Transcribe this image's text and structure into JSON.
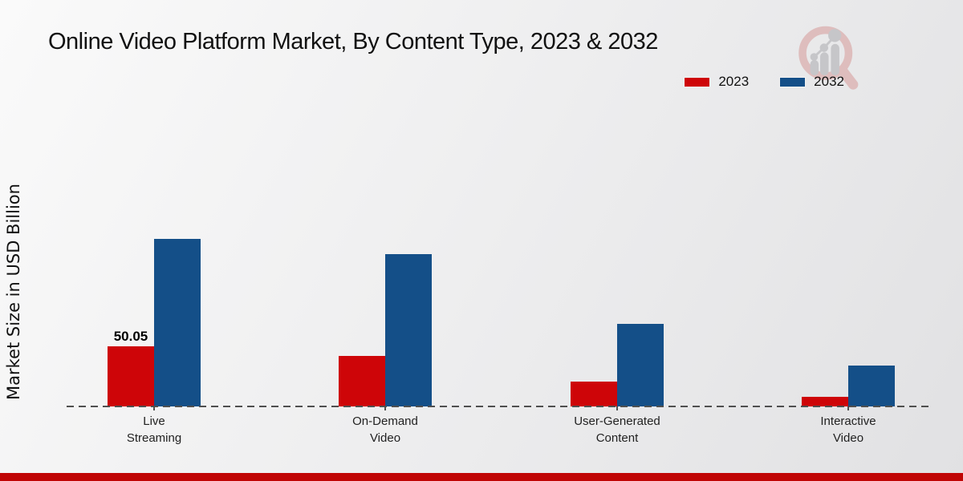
{
  "header": {
    "title": "Online Video Platform Market, By Content Type, 2023 & 2032"
  },
  "watermark": {
    "icon": "magnifier-bar-chart-logo",
    "ring_color": "#debdbd",
    "bars_color": "#c6c6c9"
  },
  "legend": {
    "items": [
      {
        "label": "2023",
        "color": "#ce0508"
      },
      {
        "label": "2032",
        "color": "#144f88"
      }
    ]
  },
  "y_axis": {
    "label": "Market Size in USD Billion"
  },
  "footer": {
    "accent_color": "#c00505"
  },
  "chart_data": {
    "type": "bar",
    "title": "Online Video Platform Market, By Content Type, 2023 & 2032",
    "xlabel": "",
    "ylabel": "Market Size in USD Billion",
    "categories": [
      "Live Streaming",
      "On-Demand Video",
      "User-Generated Content",
      "Interactive Video"
    ],
    "category_display": [
      "Live\nStreaming",
      "On-Demand\nVideo",
      "User-Generated\nContent",
      "Interactive\nVideo"
    ],
    "series": [
      {
        "name": "2023",
        "color": "#ce0508",
        "values": [
          50.05,
          42.0,
          20.7,
          8.0
        ],
        "value_labels": [
          "50.05",
          null,
          null,
          null
        ]
      },
      {
        "name": "2032",
        "color": "#144f88",
        "values": [
          139.5,
          126.9,
          68.8,
          34.1
        ],
        "value_labels": [
          null,
          null,
          null,
          null
        ]
      }
    ],
    "ylim": [
      0,
      195
    ],
    "grid": false,
    "legend_position": "top-right",
    "baseline_style": "dashed"
  }
}
